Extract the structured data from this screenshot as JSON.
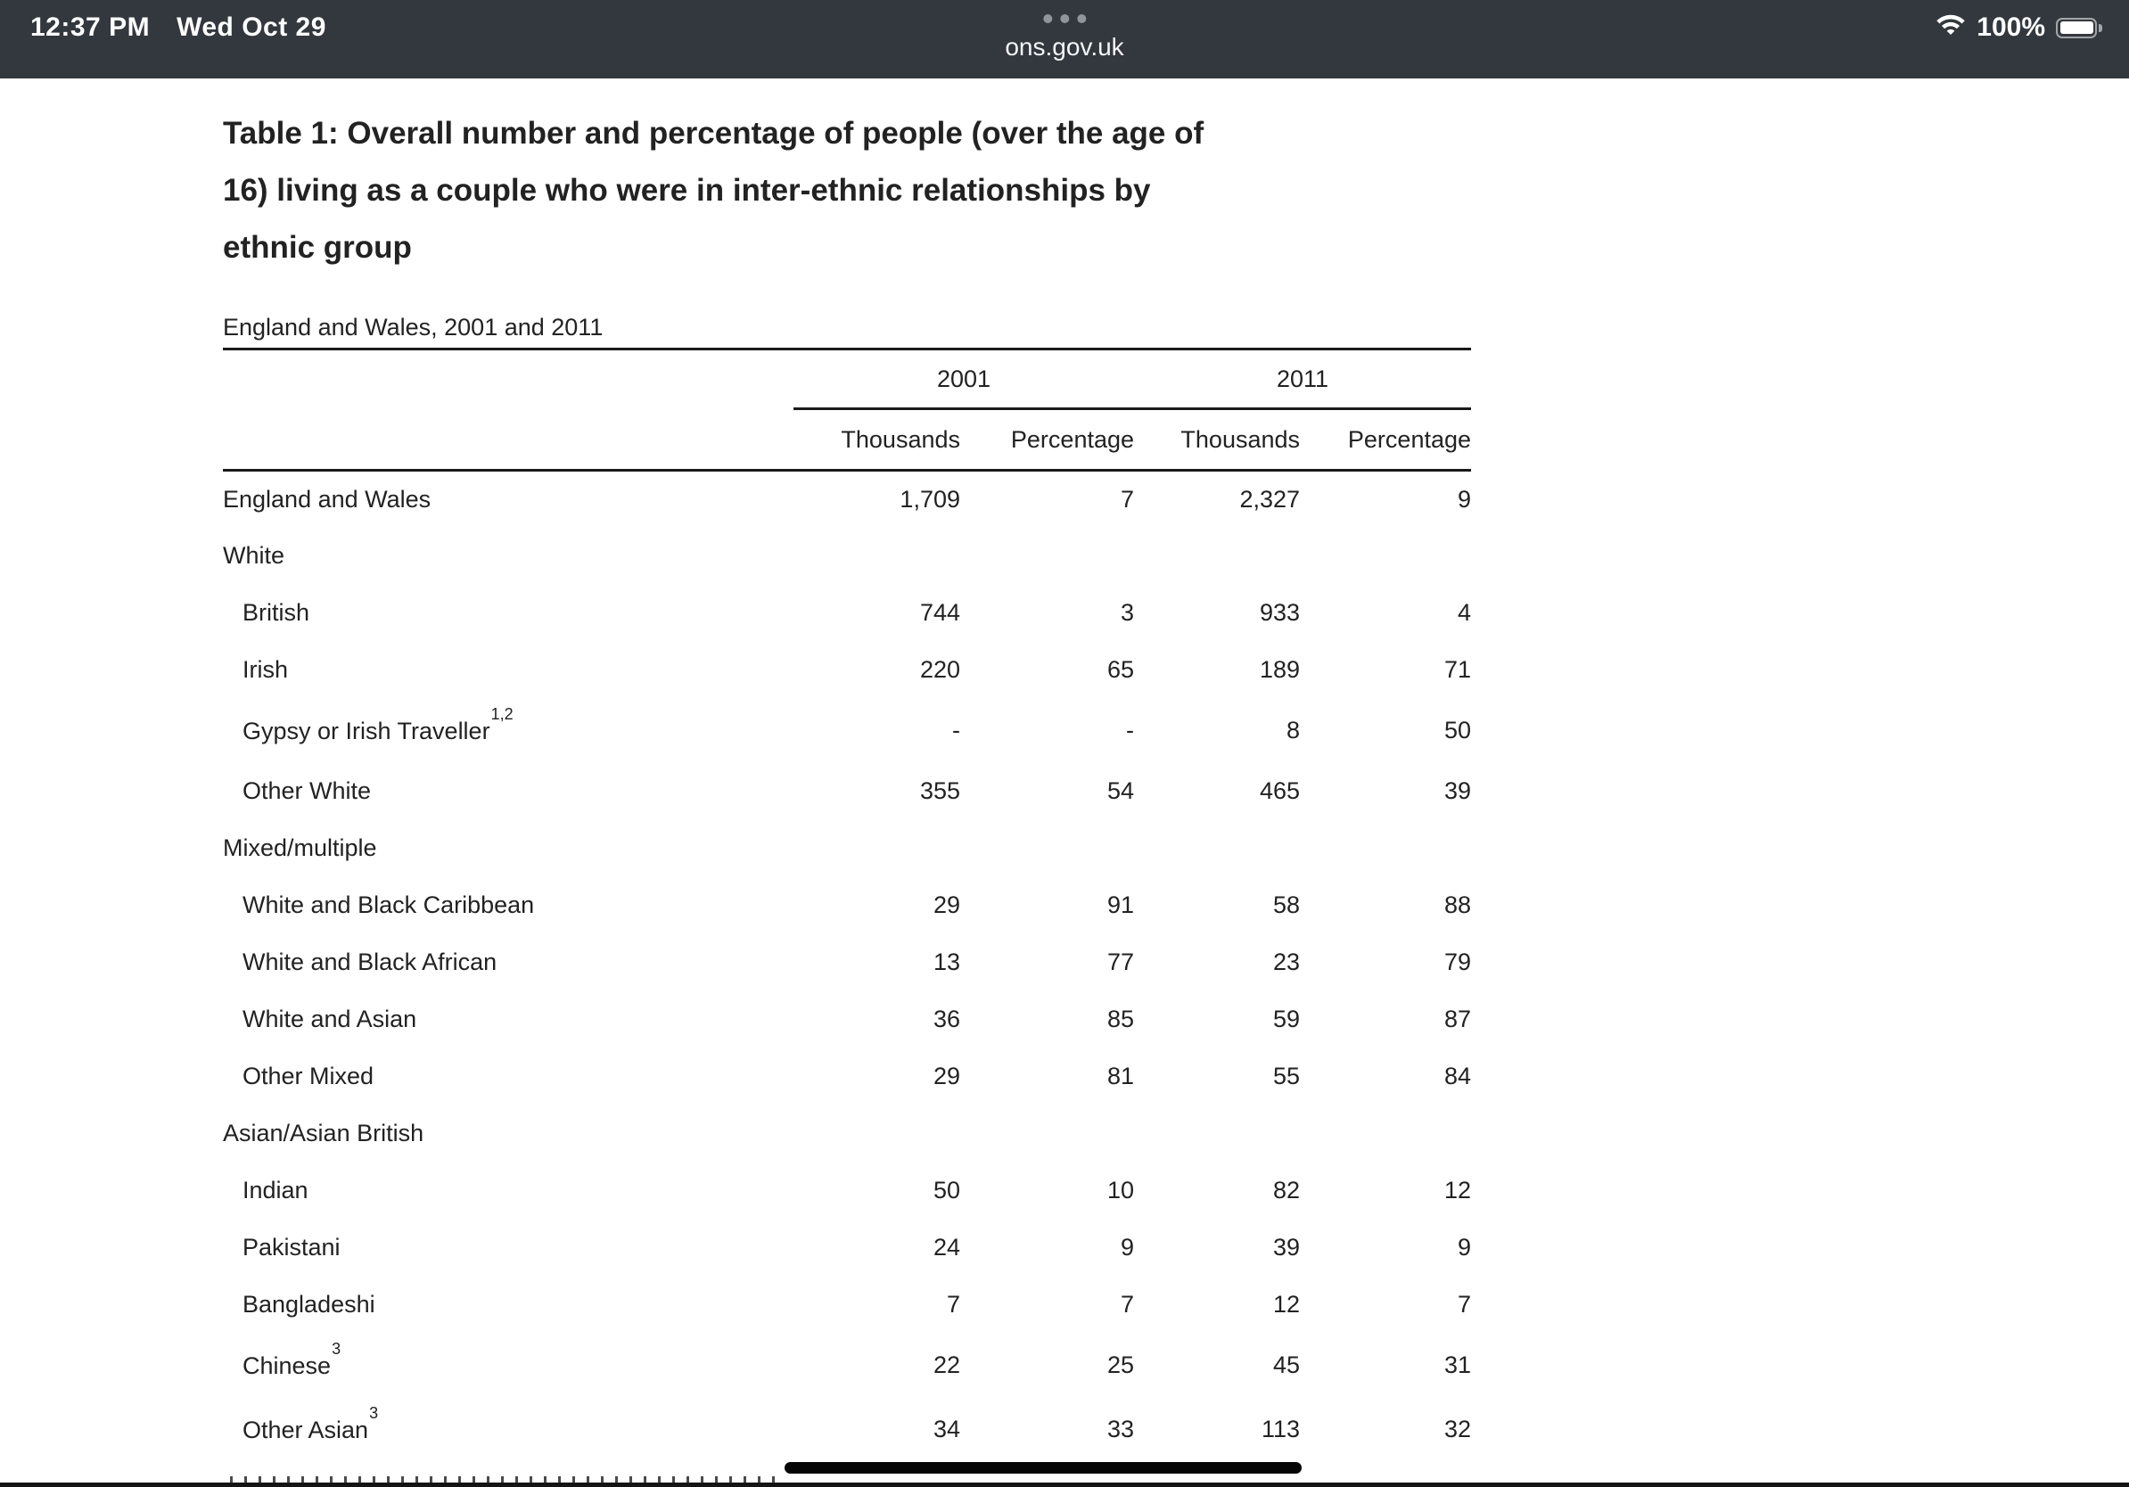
{
  "status_bar": {
    "time": "12:37 PM",
    "date": "Wed Oct 29",
    "url": "ons.gov.uk",
    "battery_level": "100%",
    "colors": {
      "background": "#33383e",
      "text": "#ffffff",
      "dots": "#8f959a"
    }
  },
  "page": {
    "title_lines": {
      "line1": "Table 1: Overall number and percentage of people (over the age of",
      "line2": "16) living as a couple who were in inter-ethnic relationships by",
      "line3": "ethnic group"
    },
    "title_full": "Table 1: Overall number and percentage of people (over the age of 16) living as a couple who were in inter-ethnic relationships by ethnic group",
    "subtitle": "England and Wales, 2001 and 2011",
    "text_color": "#222222"
  },
  "table": {
    "year_groups": {
      "y2001": "2001",
      "y2011": "2011"
    },
    "column_headers": [
      "Thousands",
      "Percentage",
      "Thousands",
      "Percentage"
    ],
    "rows": [
      {
        "label": "England and Wales",
        "indent": false,
        "group": false,
        "sup": "",
        "values": [
          "1,709",
          "7",
          "2,327",
          "9"
        ]
      },
      {
        "label": "White",
        "indent": false,
        "group": true,
        "sup": "",
        "values": [
          "",
          "",
          "",
          ""
        ]
      },
      {
        "label": "British",
        "indent": true,
        "group": false,
        "sup": "",
        "values": [
          "744",
          "3",
          "933",
          "4"
        ]
      },
      {
        "label": "Irish",
        "indent": true,
        "group": false,
        "sup": "",
        "values": [
          "220",
          "65",
          "189",
          "71"
        ]
      },
      {
        "label": "Gypsy or Irish Traveller",
        "indent": true,
        "group": false,
        "sup": "1,2",
        "values": [
          "-",
          "-",
          "8",
          "50"
        ]
      },
      {
        "label": "Other White",
        "indent": true,
        "group": false,
        "sup": "",
        "values": [
          "355",
          "54",
          "465",
          "39"
        ]
      },
      {
        "label": "Mixed/multiple",
        "indent": false,
        "group": true,
        "sup": "",
        "values": [
          "",
          "",
          "",
          ""
        ]
      },
      {
        "label": "White and Black Caribbean",
        "indent": true,
        "group": false,
        "sup": "",
        "values": [
          "29",
          "91",
          "58",
          "88"
        ]
      },
      {
        "label": "White and Black African",
        "indent": true,
        "group": false,
        "sup": "",
        "values": [
          "13",
          "77",
          "23",
          "79"
        ]
      },
      {
        "label": "White and Asian",
        "indent": true,
        "group": false,
        "sup": "",
        "values": [
          "36",
          "85",
          "59",
          "87"
        ]
      },
      {
        "label": "Other Mixed",
        "indent": true,
        "group": false,
        "sup": "",
        "values": [
          "29",
          "81",
          "55",
          "84"
        ]
      },
      {
        "label": "Asian/Asian British",
        "indent": false,
        "group": true,
        "sup": "",
        "values": [
          "",
          "",
          "",
          ""
        ]
      },
      {
        "label": "Indian",
        "indent": true,
        "group": false,
        "sup": "",
        "values": [
          "50",
          "10",
          "82",
          "12"
        ]
      },
      {
        "label": "Pakistani",
        "indent": true,
        "group": false,
        "sup": "",
        "values": [
          "24",
          "9",
          "39",
          "9"
        ]
      },
      {
        "label": "Bangladeshi",
        "indent": true,
        "group": false,
        "sup": "",
        "values": [
          "7",
          "7",
          "12",
          "7"
        ]
      },
      {
        "label": "Chinese",
        "indent": true,
        "group": false,
        "sup": "3",
        "values": [
          "22",
          "25",
          "45",
          "31"
        ]
      },
      {
        "label": "Other Asian",
        "indent": true,
        "group": false,
        "sup": "3",
        "values": [
          "34",
          "33",
          "113",
          "32"
        ]
      }
    ]
  }
}
